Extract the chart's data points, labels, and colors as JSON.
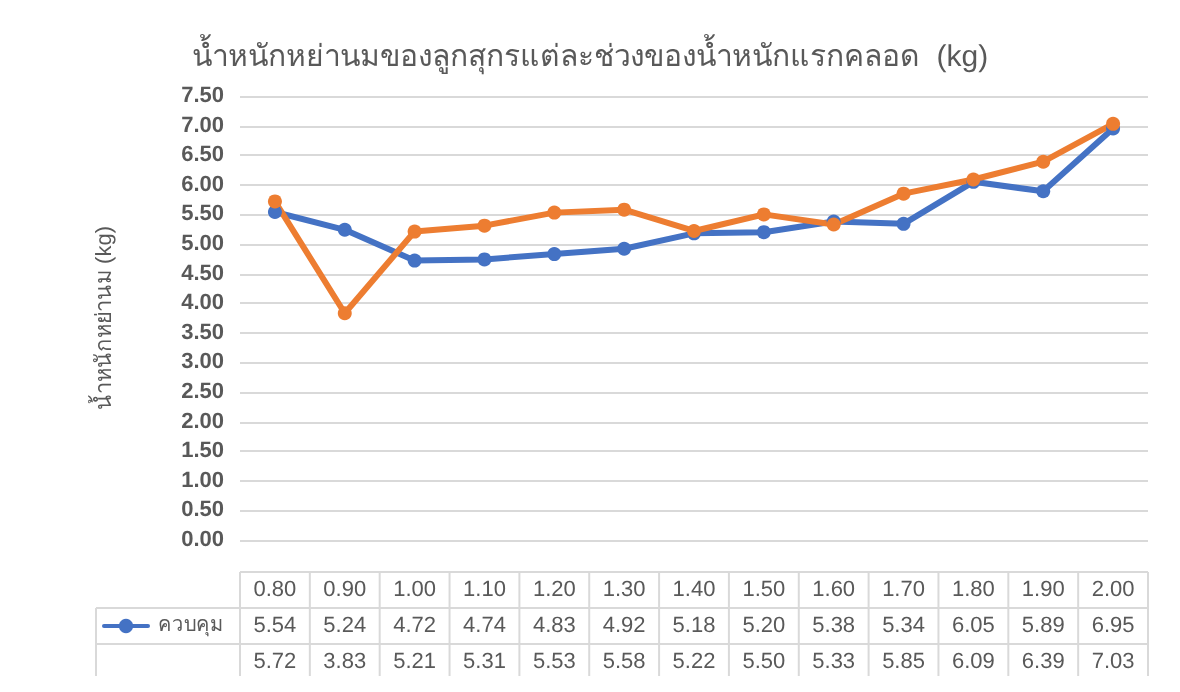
{
  "chart_data": {
    "type": "line",
    "title": "น้ำหนักหย่านมของลูกสุกรแต่ละช่วงของน้ำหนักแรกคลอด  (kg)",
    "ylabel": "น้ำหนักหย่านม (kg)",
    "categories": [
      "0.80",
      "0.90",
      "1.00",
      "1.10",
      "1.20",
      "1.30",
      "1.40",
      "1.50",
      "1.60",
      "1.70",
      "1.80",
      "1.90",
      "2.00"
    ],
    "series": [
      {
        "name": "ควบคุม",
        "color": "#4472c4",
        "values": [
          5.54,
          5.24,
          4.72,
          4.74,
          4.83,
          4.92,
          5.18,
          5.2,
          5.38,
          5.34,
          6.05,
          5.89,
          6.95
        ],
        "value_labels": [
          "5.54",
          "5.24",
          "4.72",
          "4.74",
          "4.83",
          "4.92",
          "5.18",
          "5.20",
          "5.38",
          "5.34",
          "6.05",
          "5.89",
          "6.95"
        ]
      },
      {
        "color": "#ed7d31",
        "values": [
          5.72,
          3.83,
          5.21,
          5.31,
          5.53,
          5.58,
          5.22,
          5.5,
          5.33,
          5.85,
          6.09,
          6.39,
          7.03
        ],
        "value_labels": [
          "5.72",
          "3.83",
          "5.21",
          "5.31",
          "5.53",
          "5.58",
          "5.22",
          "5.50",
          "5.33",
          "5.85",
          "6.09",
          "6.39",
          "7.03"
        ]
      }
    ],
    "ylim": [
      0,
      7.5
    ],
    "yticks": [
      {
        "value": 0,
        "label": "0.00"
      },
      {
        "value": 0.5,
        "label": "0.50"
      },
      {
        "value": 1,
        "label": "1.00"
      },
      {
        "value": 1.5,
        "label": "1.50"
      },
      {
        "value": 2,
        "label": "2.00"
      },
      {
        "value": 2.5,
        "label": "2.50"
      },
      {
        "value": 3,
        "label": "3.00"
      },
      {
        "value": 3.5,
        "label": "3.50"
      },
      {
        "value": 4,
        "label": "4.00"
      },
      {
        "value": 4.5,
        "label": "4.50"
      },
      {
        "value": 5,
        "label": "5.00"
      },
      {
        "value": 5.5,
        "label": "5.50"
      },
      {
        "value": 6,
        "label": "6.00"
      },
      {
        "value": 6.5,
        "label": "6.50"
      },
      {
        "value": 7,
        "label": "7.00"
      },
      {
        "value": 7.5,
        "label": "7.50"
      }
    ],
    "grid": "y",
    "legend": "bottom",
    "marker": "circle",
    "line_style": "solid"
  }
}
